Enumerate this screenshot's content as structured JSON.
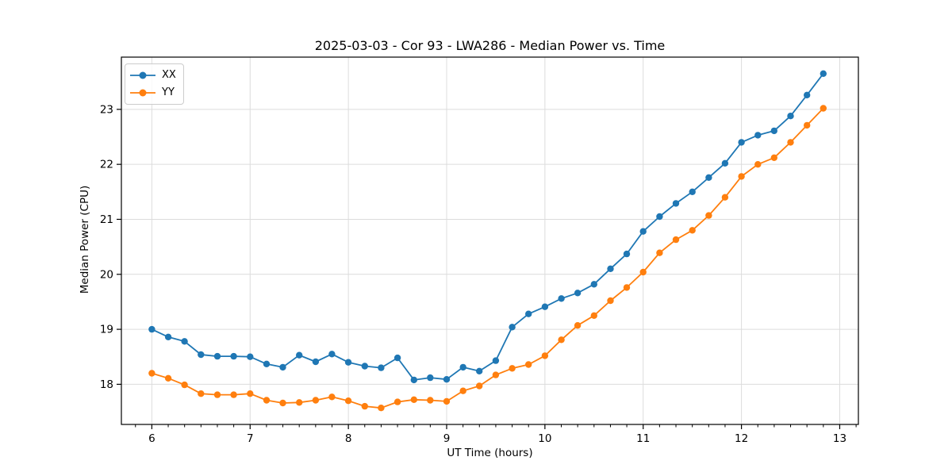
{
  "chart_data": {
    "type": "line",
    "title": "2025-03-03 - Cor 93 - LWA286 - Median Power vs. Time",
    "xlabel": "UT Time (hours)",
    "ylabel": "Median Power (CPU)",
    "xlim": [
      5.69,
      13.19
    ],
    "ylim": [
      17.27,
      23.95
    ],
    "xticks": [
      6,
      7,
      8,
      9,
      10,
      11,
      12,
      13
    ],
    "yticks": [
      18,
      19,
      20,
      21,
      22,
      23
    ],
    "minor_xtick_step_hours": 0.16667,
    "grid": "major-only",
    "grid_color": "#dcdcdc",
    "spine_color": "#000000",
    "text_color": "#000000",
    "legend_position": "upper-left",
    "marker": "circle",
    "x": [
      6.0,
      6.167,
      6.333,
      6.5,
      6.667,
      6.833,
      7.0,
      7.167,
      7.333,
      7.5,
      7.667,
      7.833,
      8.0,
      8.167,
      8.333,
      8.5,
      8.667,
      8.833,
      9.0,
      9.167,
      9.333,
      9.5,
      9.667,
      9.833,
      10.0,
      10.167,
      10.333,
      10.5,
      10.667,
      10.833,
      11.0,
      11.167,
      11.333,
      11.5,
      11.667,
      11.833,
      12.0,
      12.167,
      12.333,
      12.5,
      12.667,
      12.833
    ],
    "series": [
      {
        "name": "XX",
        "color": "#1f77b4",
        "values": [
          19.0,
          18.86,
          18.78,
          18.54,
          18.51,
          18.51,
          18.5,
          18.37,
          18.31,
          18.53,
          18.41,
          18.55,
          18.4,
          18.33,
          18.3,
          18.48,
          18.08,
          18.12,
          18.09,
          18.31,
          18.24,
          18.43,
          19.04,
          19.28,
          19.41,
          19.56,
          19.66,
          19.82,
          20.1,
          20.37,
          20.78,
          21.05,
          21.29,
          21.5,
          21.76,
          22.02,
          22.4,
          22.53,
          22.61,
          22.88,
          23.26,
          23.65
        ]
      },
      {
        "name": "YY",
        "color": "#ff7f0e",
        "values": [
          18.2,
          18.11,
          17.99,
          17.83,
          17.81,
          17.81,
          17.83,
          17.71,
          17.66,
          17.67,
          17.71,
          17.77,
          17.7,
          17.6,
          17.57,
          17.68,
          17.72,
          17.71,
          17.69,
          17.88,
          17.97,
          18.17,
          18.29,
          18.36,
          18.52,
          18.81,
          19.07,
          19.25,
          19.52,
          19.76,
          20.04,
          20.39,
          20.63,
          20.8,
          21.07,
          21.4,
          21.78,
          22.0,
          22.12,
          22.4,
          22.71,
          23.02
        ]
      }
    ]
  }
}
